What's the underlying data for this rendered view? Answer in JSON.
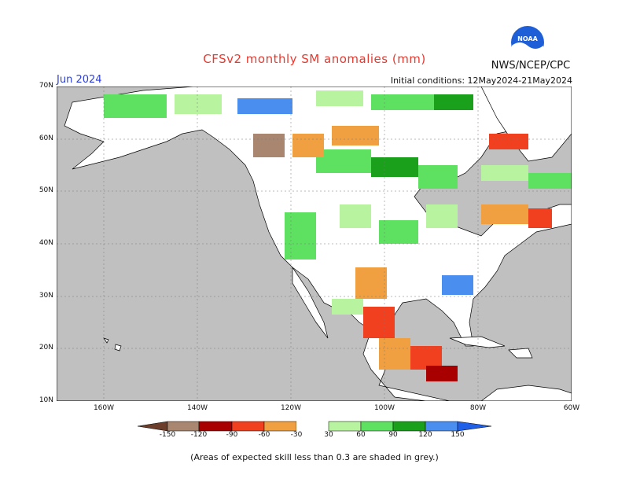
{
  "header": {
    "title": "CFSv2 monthly SM anomalies (mm)",
    "agency": "NWS/NCEP/CPC",
    "valid_month": "Jun 2024",
    "initial_conditions": "Initial conditions: 12May2024-21May2024"
  },
  "map": {
    "lat_labels": [
      "70N",
      "60N",
      "50N",
      "40N",
      "30N",
      "20N",
      "10N"
    ],
    "lon_labels": [
      "160W",
      "140W",
      "120W",
      "100W",
      "80W",
      "60W"
    ],
    "colors": {
      "ocean_grey": "#c0c0c0",
      "land_white": "#ffffff"
    }
  },
  "legend": {
    "labels": [
      "-150",
      "-120",
      "-90",
      "-60",
      "-30",
      "30",
      "60",
      "90",
      "120",
      "150"
    ],
    "colors": [
      "#6b3d2a",
      "#a88670",
      "#a80000",
      "#f04020",
      "#f0a040",
      "#ffffff",
      "#b8f4a0",
      "#5ee060",
      "#1aa01a",
      "#4a8ef0",
      "#2060e8"
    ]
  },
  "footnote": "(Areas of expected skill less than 0.3 are shaded in grey.)"
}
